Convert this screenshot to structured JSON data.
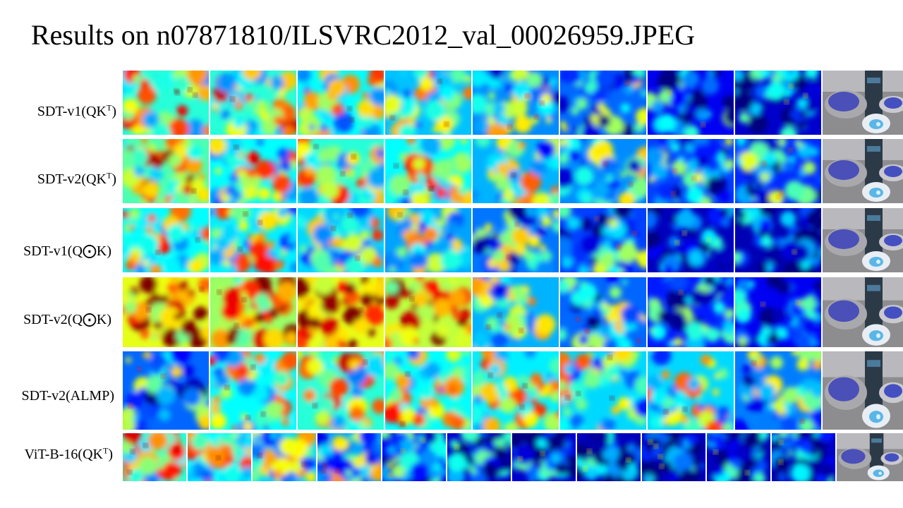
{
  "title": "Results on n07871810/ILSVRC2012_val_00026959.JPEG",
  "colormap": "jet",
  "rows": [
    {
      "label_main": "SDT-v1(QK",
      "label_sup": "T",
      "label_tail": ")",
      "model": "SDT-v1",
      "attention": "QK^T",
      "heatmap_count": 8,
      "mean_activation": [
        0.55,
        0.55,
        0.5,
        0.42,
        0.35,
        0.3,
        0.15,
        0.1
      ]
    },
    {
      "label_main": "SDT-v2(QK",
      "label_sup": "T",
      "label_tail": ")",
      "model": "SDT-v2",
      "attention": "QK^T",
      "heatmap_count": 8,
      "mean_activation": [
        0.6,
        0.5,
        0.55,
        0.5,
        0.4,
        0.35,
        0.25,
        0.22
      ]
    },
    {
      "label_main": "SDT-v1(Q⨀K)",
      "label_sup": "",
      "label_tail": "",
      "model": "SDT-v1",
      "attention": "Q⊙K",
      "heatmap_count": 8,
      "mean_activation": [
        0.5,
        0.48,
        0.45,
        0.38,
        0.32,
        0.25,
        0.08,
        0.07
      ]
    },
    {
      "label_main": "SDT-v2(Q⨀K)",
      "label_sup": "",
      "label_tail": "",
      "model": "SDT-v2",
      "attention": "Q⊙K",
      "heatmap_count": 8,
      "mean_activation": [
        0.8,
        0.7,
        0.8,
        0.75,
        0.4,
        0.3,
        0.2,
        0.15
      ]
    },
    {
      "label_main": "SDT-v2(ALMP)",
      "label_sup": "",
      "label_tail": "",
      "model": "SDT-v2",
      "attention": "ALMP",
      "heatmap_count": 8,
      "mean_activation": [
        0.3,
        0.5,
        0.55,
        0.5,
        0.48,
        0.45,
        0.45,
        0.33
      ]
    },
    {
      "label_main": "ViT-B-16(QK",
      "label_sup": "T",
      "label_tail": ")",
      "model": "ViT-B-16",
      "attention": "QK^T",
      "heatmap_count": 11,
      "mean_activation": [
        0.55,
        0.5,
        0.45,
        0.38,
        0.15,
        0.1,
        0.1,
        0.08,
        0.08,
        0.08,
        0.1
      ]
    }
  ],
  "icons": {
    "photo": "image-thumbnail-icon"
  }
}
